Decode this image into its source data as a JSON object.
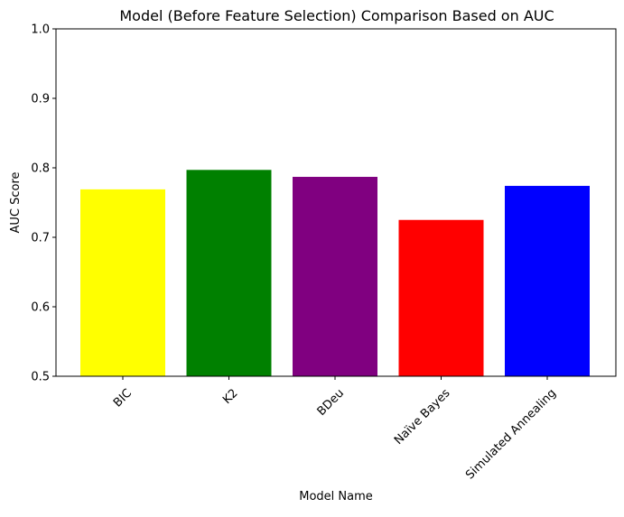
{
  "chart_data": {
    "type": "bar",
    "title": "Model (Before Feature Selection) Comparison Based on AUC",
    "xlabel": "Model Name",
    "ylabel": "AUC Score",
    "categories": [
      "BIC",
      "K2",
      "BDeu",
      "Naïve Bayes",
      "Simulated Annealing"
    ],
    "values": [
      0.769,
      0.797,
      0.787,
      0.725,
      0.774
    ],
    "colors": [
      "#ffff00",
      "#008000",
      "#800080",
      "#ff0000",
      "#0000ff"
    ],
    "ylim": [
      0.5,
      1.0
    ],
    "yticks": [
      "0.5",
      "0.6",
      "0.7",
      "0.8",
      "0.9",
      "1.0"
    ],
    "grid": false,
    "legend": "none"
  }
}
